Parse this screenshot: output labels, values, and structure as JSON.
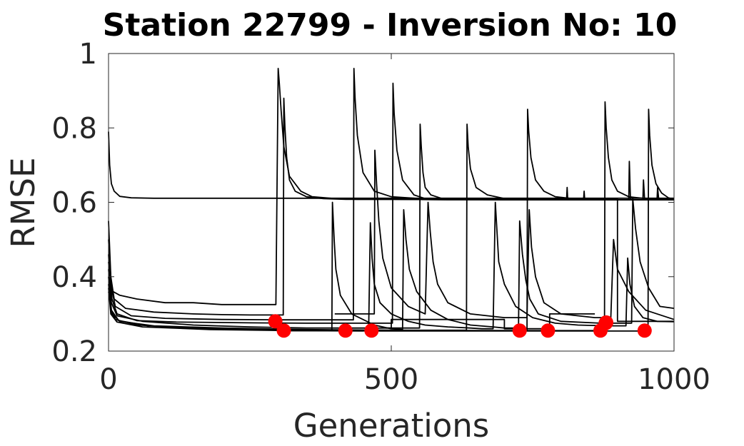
{
  "chart_data": {
    "type": "line",
    "title": "Station 22799 - Inversion No: 10",
    "xlabel": "Generations",
    "ylabel": "RMSE",
    "xlim": [
      0,
      1000
    ],
    "ylim": [
      0.2,
      1.0
    ],
    "xticks": [
      0,
      500,
      1000
    ],
    "xtick_labels": [
      "0",
      "500",
      "1000"
    ],
    "yticks": [
      0.2,
      0.4,
      0.6,
      0.8,
      1.0
    ],
    "ytick_labels": [
      "0.2",
      "0.4",
      "0.6",
      "0.8",
      "1"
    ],
    "grid": false,
    "box": true,
    "line_color": "#000000",
    "marker_color": "#ff0000",
    "series": [
      {
        "x": [
          0,
          2,
          5,
          10,
          20,
          40,
          80,
          150,
          200,
          250,
          297,
          297,
          300,
          305,
          310,
          320,
          340,
          380,
          420,
          500,
          600,
          700,
          800,
          900,
          1000
        ],
        "y": [
          0.79,
          0.7,
          0.65,
          0.63,
          0.616,
          0.612,
          0.611,
          0.611,
          0.611,
          0.611,
          0.611,
          0.611,
          0.611,
          0.611,
          0.611,
          0.611,
          0.611,
          0.611,
          0.611,
          0.611,
          0.611,
          0.611,
          0.611,
          0.611,
          0.611
        ]
      },
      {
        "x": [
          0,
          3,
          8,
          20,
          50,
          100,
          150,
          200,
          250,
          296,
          300,
          302,
          305,
          310,
          320,
          340,
          360,
          400,
          440,
          500,
          600,
          700,
          800,
          900,
          1000
        ],
        "y": [
          0.46,
          0.38,
          0.36,
          0.35,
          0.34,
          0.33,
          0.33,
          0.325,
          0.325,
          0.325,
          0.96,
          0.92,
          0.85,
          0.75,
          0.67,
          0.63,
          0.615,
          0.61,
          0.608,
          0.608,
          0.607,
          0.607,
          0.607,
          0.607,
          0.607
        ]
      },
      {
        "x": [
          0,
          4,
          10,
          30,
          80,
          150,
          200,
          250,
          309,
          310,
          312,
          315,
          320,
          330,
          350,
          380,
          420,
          500,
          600,
          700,
          800,
          900,
          1000
        ],
        "y": [
          0.55,
          0.4,
          0.34,
          0.315,
          0.305,
          0.3,
          0.298,
          0.297,
          0.297,
          0.88,
          0.8,
          0.72,
          0.66,
          0.63,
          0.615,
          0.61,
          0.608,
          0.608,
          0.607,
          0.607,
          0.607,
          0.607,
          0.607
        ]
      },
      {
        "x": [
          0,
          5,
          12,
          40,
          100,
          200,
          300,
          400,
          433,
          434,
          436,
          440,
          450,
          470,
          500,
          550,
          600,
          700,
          800,
          900,
          1000
        ],
        "y": [
          0.5,
          0.37,
          0.32,
          0.295,
          0.288,
          0.285,
          0.284,
          0.284,
          0.284,
          0.96,
          0.88,
          0.78,
          0.68,
          0.63,
          0.615,
          0.61,
          0.608,
          0.607,
          0.607,
          0.607,
          0.607
        ]
      },
      {
        "x": [
          0,
          6,
          15,
          50,
          120,
          250,
          350,
          450,
          502,
          503,
          505,
          510,
          520,
          540,
          560,
          600,
          700,
          800,
          900,
          1000
        ],
        "y": [
          0.44,
          0.34,
          0.3,
          0.282,
          0.278,
          0.276,
          0.275,
          0.275,
          0.275,
          0.92,
          0.84,
          0.74,
          0.66,
          0.62,
          0.61,
          0.608,
          0.607,
          0.607,
          0.607,
          0.607
        ]
      },
      {
        "x": [
          0,
          5,
          15,
          60,
          150,
          250,
          350,
          450,
          550,
          551,
          553,
          556,
          560,
          570,
          590,
          620,
          700,
          800,
          900,
          1000
        ],
        "y": [
          0.42,
          0.33,
          0.295,
          0.28,
          0.27,
          0.265,
          0.262,
          0.262,
          0.262,
          0.81,
          0.75,
          0.68,
          0.64,
          0.62,
          0.61,
          0.608,
          0.607,
          0.607,
          0.607,
          0.607
        ]
      },
      {
        "x": [
          0,
          4,
          12,
          50,
          150,
          300,
          450,
          600,
          633,
          634,
          636,
          640,
          650,
          670,
          700,
          750,
          800,
          900,
          1000
        ],
        "y": [
          0.38,
          0.31,
          0.285,
          0.27,
          0.262,
          0.258,
          0.256,
          0.256,
          0.256,
          0.81,
          0.75,
          0.69,
          0.64,
          0.62,
          0.61,
          0.608,
          0.607,
          0.607,
          0.607
        ]
      },
      {
        "x": [
          0,
          6,
          20,
          80,
          200,
          350,
          500,
          650,
          740,
          741,
          743,
          747,
          755,
          770,
          790,
          820,
          850,
          900,
          1000
        ],
        "y": [
          0.36,
          0.3,
          0.28,
          0.268,
          0.262,
          0.258,
          0.256,
          0.255,
          0.255,
          0.85,
          0.79,
          0.72,
          0.66,
          0.63,
          0.615,
          0.61,
          0.608,
          0.607,
          0.607
        ]
      },
      {
        "x": [
          0,
          5,
          18,
          70,
          200,
          350,
          500,
          650,
          800,
          877,
          878,
          880,
          884,
          890,
          900,
          920,
          950,
          1000
        ],
        "y": [
          0.4,
          0.31,
          0.282,
          0.268,
          0.26,
          0.257,
          0.255,
          0.255,
          0.255,
          0.255,
          0.87,
          0.8,
          0.72,
          0.66,
          0.63,
          0.615,
          0.61,
          0.608
        ]
      },
      {
        "x": [
          0,
          4,
          15,
          60,
          180,
          320,
          480,
          640,
          800,
          954,
          955,
          957,
          961,
          968,
          978,
          990,
          1000
        ],
        "y": [
          0.37,
          0.3,
          0.278,
          0.265,
          0.258,
          0.255,
          0.254,
          0.254,
          0.254,
          0.254,
          0.85,
          0.78,
          0.7,
          0.65,
          0.625,
          0.612,
          0.608
        ]
      },
      {
        "x": [
          310,
          380,
          460,
          463,
          466,
          470,
          480,
          500,
          530,
          560,
          600,
          640,
          660,
          680,
          684,
          687,
          690,
          700,
          720,
          750,
          790,
          830,
          880,
          915,
          918,
          922,
          930,
          945,
          970,
          1000
        ],
        "y": [
          0.255,
          0.255,
          0.255,
          0.545,
          0.45,
          0.38,
          0.33,
          0.3,
          0.28,
          0.27,
          0.265,
          0.262,
          0.26,
          0.26,
          0.6,
          0.52,
          0.44,
          0.38,
          0.32,
          0.29,
          0.275,
          0.27,
          0.268,
          0.268,
          0.45,
          0.38,
          0.32,
          0.29,
          0.28,
          0.279
        ]
      },
      {
        "x": [
          400,
          470,
          471,
          474,
          478,
          485,
          500,
          530,
          560,
          565,
          569,
          574,
          582,
          600,
          640,
          700,
          740,
          744,
          748,
          755,
          770,
          800,
          860,
          880,
          888,
          893,
          900,
          920,
          950,
          1000
        ],
        "y": [
          0.3,
          0.3,
          0.74,
          0.65,
          0.55,
          0.45,
          0.37,
          0.32,
          0.3,
          0.6,
          0.52,
          0.44,
          0.38,
          0.33,
          0.3,
          0.29,
          0.29,
          0.58,
          0.48,
          0.4,
          0.33,
          0.3,
          0.29,
          0.29,
          0.28,
          0.5,
          0.42,
          0.36,
          0.31,
          0.285
        ]
      },
      {
        "x": [
          300,
          395,
          396,
          399,
          402,
          410,
          430,
          470,
          500,
          520,
          522,
          526,
          532,
          545,
          570,
          600,
          640,
          680,
          700,
          725,
          727,
          732,
          738,
          745,
          760,
          800,
          870,
          925,
          927,
          932,
          940,
          955,
          975,
          1000
        ],
        "y": [
          0.255,
          0.255,
          0.6,
          0.5,
          0.42,
          0.35,
          0.3,
          0.27,
          0.26,
          0.258,
          0.58,
          0.5,
          0.42,
          0.36,
          0.31,
          0.285,
          0.27,
          0.265,
          0.262,
          0.262,
          0.55,
          0.46,
          0.39,
          0.34,
          0.3,
          0.28,
          0.275,
          0.275,
          0.61,
          0.53,
          0.44,
          0.37,
          0.32,
          0.315
        ]
      },
      {
        "x": [
          810,
          811,
          812,
          840,
          841,
          842,
          920,
          921,
          923,
          945,
          946,
          948,
          970,
          971,
          973
        ],
        "y": [
          0.607,
          0.64,
          0.607,
          0.607,
          0.63,
          0.607,
          0.607,
          0.71,
          0.607,
          0.607,
          0.66,
          0.607,
          0.607,
          0.64,
          0.607
        ]
      },
      {
        "x": [
          550,
          900,
          900,
          960,
          1000
        ],
        "y": [
          0.608,
          0.608,
          0.28,
          0.28,
          0.28
        ]
      },
      {
        "x": [
          490,
          500,
          500,
          700,
          700,
          780,
          780,
          860
        ],
        "y": [
          0.262,
          0.262,
          0.285,
          0.285,
          0.26,
          0.26,
          0.3,
          0.3
        ]
      }
    ],
    "markers": {
      "name": "",
      "x": [
        295,
        310,
        419,
        465,
        727,
        777,
        870,
        879,
        880,
        948
      ],
      "y": [
        0.28,
        0.255,
        0.255,
        0.255,
        0.255,
        0.255,
        0.255,
        0.275,
        0.277,
        0.255
      ]
    }
  }
}
